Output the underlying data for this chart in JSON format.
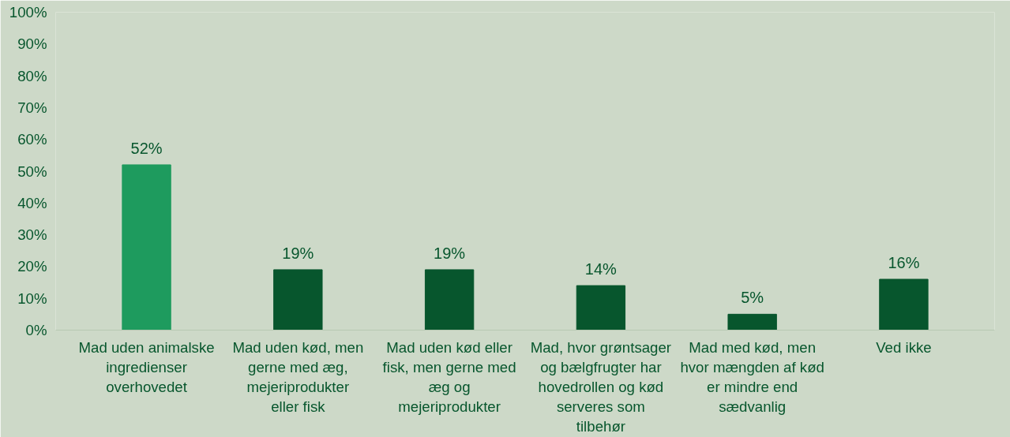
{
  "chart_data": {
    "type": "bar",
    "categories": [
      "Mad uden animalske ingredienser overhovedet",
      "Mad uden kød, men gerne med æg, mejeriprodukter eller fisk",
      "Mad uden kød eller fisk, men gerne med æg og mejeriprodukter",
      "Mad, hvor grøntsager og bælgfrugter har hovedrollen og kød serveres som tilbehør",
      "Mad med kød, men hvor mængden af kød er mindre end sædvanlig",
      "Ved ikke"
    ],
    "values": [
      52,
      19,
      19,
      14,
      5,
      16
    ],
    "colors": [
      "#1e9b5e",
      "#07562d",
      "#07562d",
      "#07562d",
      "#07562d",
      "#07562d"
    ],
    "ylim": [
      0,
      100
    ],
    "yticks": [
      {
        "value": 0,
        "label": "0%"
      },
      {
        "value": 10,
        "label": "10%"
      },
      {
        "value": 20,
        "label": "20%"
      },
      {
        "value": 30,
        "label": "30%"
      },
      {
        "value": 40,
        "label": "40%"
      },
      {
        "value": 50,
        "label": "50%"
      },
      {
        "value": 60,
        "label": "60%"
      },
      {
        "value": 70,
        "label": "70%"
      },
      {
        "value": 80,
        "label": "80%"
      },
      {
        "value": 90,
        "label": "90%"
      },
      {
        "value": 100,
        "label": "100%"
      }
    ],
    "value_labels": [
      "52%",
      "19%",
      "19%",
      "14%",
      "5%",
      "16%"
    ],
    "grid": false
  }
}
